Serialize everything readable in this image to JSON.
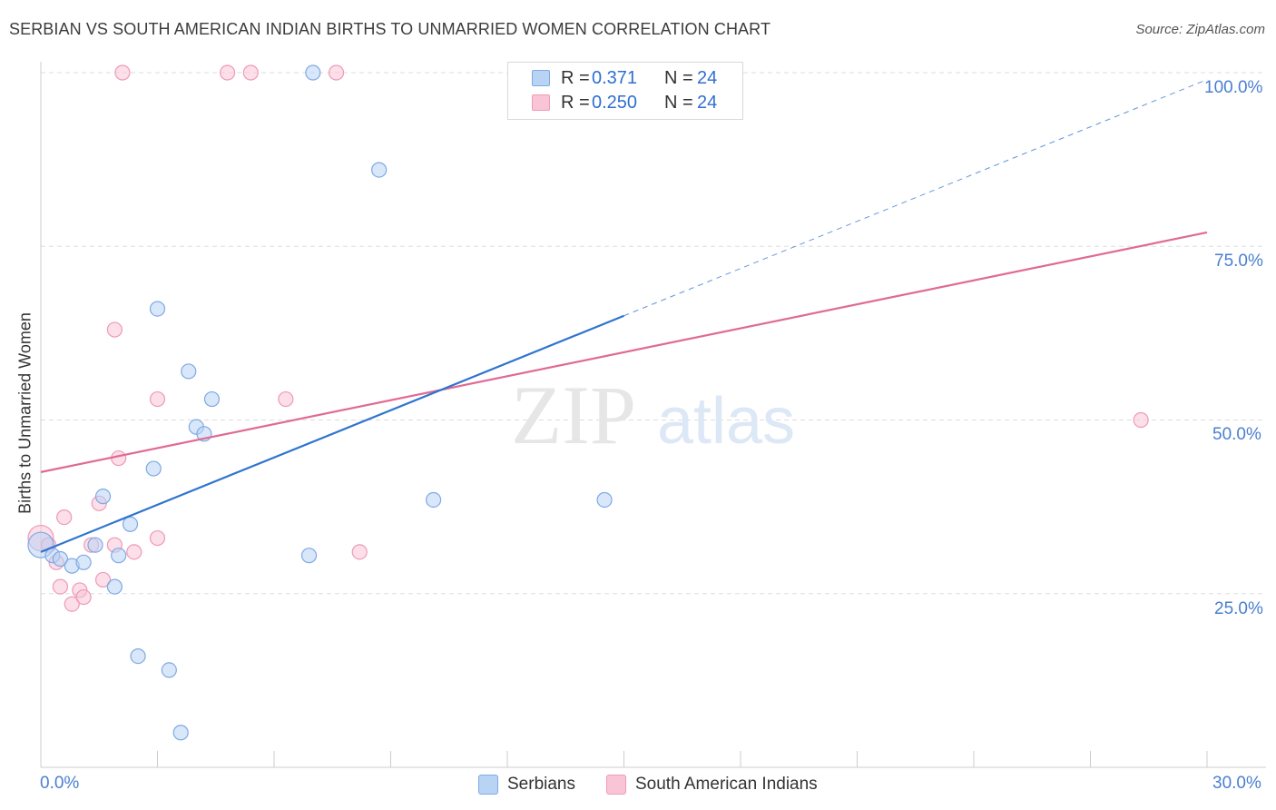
{
  "header": {
    "title": "SERBIAN VS SOUTH AMERICAN INDIAN BIRTHS TO UNMARRIED WOMEN CORRELATION CHART",
    "source": "Source: ZipAtlas.com"
  },
  "legend_top": {
    "rows": [
      {
        "r_label": "R =",
        "r_value": "0.371",
        "n_label": "N =",
        "n_value": "24"
      },
      {
        "r_label": "R =",
        "r_value": "0.250",
        "n_label": "N =",
        "n_value": "24"
      }
    ]
  },
  "legend_bottom": {
    "items": [
      {
        "label": "Serbians"
      },
      {
        "label": "South American Indians"
      }
    ]
  },
  "axes": {
    "ylabel": "Births to Unmarried Women",
    "x_tick_left": "0.0%",
    "x_tick_right": "30.0%",
    "y_ticks": [
      "100.0%",
      "75.0%",
      "50.0%",
      "25.0%"
    ]
  },
  "watermark": {
    "zip": "ZIP",
    "atlas": "atlas"
  },
  "colors": {
    "serbian_fill": "#b9d3f5",
    "serbian_stroke": "#7ea9e3",
    "serbian_line": "#2f74d0",
    "sai_fill": "#f9c5d6",
    "sai_stroke": "#ee9ab6",
    "sai_line": "#e06a95",
    "tick_text": "#4a7fd0"
  },
  "chart_data": {
    "type": "scatter",
    "title": "SERBIAN VS SOUTH AMERICAN INDIAN BIRTHS TO UNMARRIED WOMEN CORRELATION CHART",
    "xlabel": "",
    "ylabel": "Births to Unmarried Women",
    "xlim": [
      0,
      30
    ],
    "ylim": [
      0,
      100
    ],
    "y_gridlines": [
      25,
      50,
      75,
      100
    ],
    "series": [
      {
        "name": "Serbians",
        "r": 0.371,
        "n": 24,
        "points": [
          [
            0.0,
            32.0
          ],
          [
            0.3,
            30.5
          ],
          [
            0.5,
            30.0
          ],
          [
            0.8,
            29.0
          ],
          [
            1.1,
            29.5
          ],
          [
            1.6,
            39.0
          ],
          [
            1.9,
            26.0
          ],
          [
            2.0,
            30.5
          ],
          [
            2.3,
            35.0
          ],
          [
            2.5,
            16.0
          ],
          [
            2.9,
            43.0
          ],
          [
            3.0,
            66.0
          ],
          [
            3.3,
            14.0
          ],
          [
            3.6,
            5.0
          ],
          [
            3.8,
            57.0
          ],
          [
            4.0,
            49.0
          ],
          [
            4.2,
            48.0
          ],
          [
            4.4,
            53.0
          ],
          [
            6.9,
            30.5
          ],
          [
            7.0,
            100.0
          ],
          [
            8.7,
            86.0
          ],
          [
            10.1,
            38.5
          ],
          [
            14.5,
            38.5
          ],
          [
            1.4,
            32.0
          ]
        ],
        "trend": {
          "x": [
            0,
            15
          ],
          "y": [
            31.0,
            65.0
          ],
          "dashed_extension": {
            "x": [
              15,
              30
            ],
            "y": [
              65.0,
              99.0
            ]
          }
        }
      },
      {
        "name": "South American Indians",
        "r": 0.25,
        "n": 24,
        "points": [
          [
            0.0,
            33.0
          ],
          [
            0.4,
            29.5
          ],
          [
            0.5,
            26.0
          ],
          [
            0.6,
            36.0
          ],
          [
            0.8,
            23.5
          ],
          [
            1.0,
            25.5
          ],
          [
            1.1,
            24.5
          ],
          [
            1.5,
            38.0
          ],
          [
            1.6,
            27.0
          ],
          [
            1.9,
            63.0
          ],
          [
            2.0,
            44.5
          ],
          [
            2.4,
            31.0
          ],
          [
            3.0,
            53.0
          ],
          [
            3.0,
            33.0
          ],
          [
            2.1,
            100.0
          ],
          [
            4.8,
            100.0
          ],
          [
            5.4,
            100.0
          ],
          [
            6.3,
            53.0
          ],
          [
            7.6,
            100.0
          ],
          [
            8.2,
            31.0
          ],
          [
            28.3,
            50.0
          ],
          [
            1.9,
            32.0
          ],
          [
            0.2,
            32.0
          ],
          [
            1.3,
            32.0
          ]
        ],
        "trend": {
          "x": [
            0,
            30
          ],
          "y": [
            42.5,
            77.0
          ]
        }
      }
    ]
  }
}
